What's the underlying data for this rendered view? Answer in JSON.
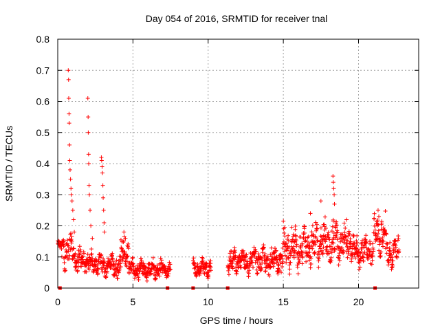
{
  "chart_data": {
    "type": "scatter",
    "title": "Day 054 of 2016, SRMTID for receiver tnal",
    "xlabel": "GPS time / hours",
    "ylabel": "SRMTID / TECUs",
    "xlim": [
      0,
      24
    ],
    "ylim": [
      0,
      0.8
    ],
    "xticks": [
      0,
      5,
      10,
      15,
      20
    ],
    "yticks": [
      0,
      0.1,
      0.2,
      0.3,
      0.4,
      0.5,
      0.6,
      0.7,
      0.8
    ],
    "grid": true,
    "marker": "+",
    "color": "#ff0000",
    "baseline_markers_x": [
      0.15,
      7.3,
      9.0,
      11.3,
      21.1
    ],
    "segments": [
      {
        "x0": 0.0,
        "x1": 0.2,
        "base": 0.14,
        "amp": 0.02
      },
      {
        "x0": 0.2,
        "x1": 1.1,
        "base": 0.12,
        "amp": 0.04
      },
      {
        "x0": 1.1,
        "x1": 2.0,
        "base": 0.09,
        "amp": 0.03
      },
      {
        "x0": 2.0,
        "x1": 2.9,
        "base": 0.08,
        "amp": 0.03
      },
      {
        "x0": 2.9,
        "x1": 4.2,
        "base": 0.07,
        "amp": 0.03
      },
      {
        "x0": 4.2,
        "x1": 4.7,
        "base": 0.12,
        "amp": 0.04
      },
      {
        "x0": 4.7,
        "x1": 7.5,
        "base": 0.06,
        "amp": 0.025
      },
      {
        "x0": 9.0,
        "x1": 10.2,
        "base": 0.065,
        "amp": 0.02
      },
      {
        "x0": 11.3,
        "x1": 13.0,
        "base": 0.085,
        "amp": 0.03
      },
      {
        "x0": 13.0,
        "x1": 15.0,
        "base": 0.09,
        "amp": 0.035
      },
      {
        "x0": 15.0,
        "x1": 17.0,
        "base": 0.13,
        "amp": 0.05
      },
      {
        "x0": 17.0,
        "x1": 19.5,
        "base": 0.15,
        "amp": 0.05
      },
      {
        "x0": 19.5,
        "x1": 21.0,
        "base": 0.12,
        "amp": 0.04
      },
      {
        "x0": 21.0,
        "x1": 21.8,
        "base": 0.17,
        "amp": 0.05
      },
      {
        "x0": 21.8,
        "x1": 22.7,
        "base": 0.12,
        "amp": 0.04
      }
    ],
    "peaks": [
      {
        "x": 0.4,
        "y": 0.15
      },
      {
        "x": 0.7,
        "y": 0.7
      },
      {
        "x": 0.72,
        "y": 0.67
      },
      {
        "x": 0.73,
        "y": 0.61
      },
      {
        "x": 0.75,
        "y": 0.56
      },
      {
        "x": 0.76,
        "y": 0.53
      },
      {
        "x": 0.78,
        "y": 0.46
      },
      {
        "x": 0.8,
        "y": 0.41
      },
      {
        "x": 0.82,
        "y": 0.38
      },
      {
        "x": 0.85,
        "y": 0.35
      },
      {
        "x": 0.88,
        "y": 0.32
      },
      {
        "x": 0.9,
        "y": 0.3
      },
      {
        "x": 0.95,
        "y": 0.28
      },
      {
        "x": 1.0,
        "y": 0.25
      },
      {
        "x": 1.05,
        "y": 0.22
      },
      {
        "x": 1.1,
        "y": 0.18
      },
      {
        "x": 2.0,
        "y": 0.61
      },
      {
        "x": 2.02,
        "y": 0.55
      },
      {
        "x": 2.03,
        "y": 0.5
      },
      {
        "x": 2.05,
        "y": 0.43
      },
      {
        "x": 2.06,
        "y": 0.4
      },
      {
        "x": 2.08,
        "y": 0.33
      },
      {
        "x": 2.1,
        "y": 0.3
      },
      {
        "x": 2.15,
        "y": 0.25
      },
      {
        "x": 2.2,
        "y": 0.2
      },
      {
        "x": 2.3,
        "y": 0.16
      },
      {
        "x": 2.9,
        "y": 0.42
      },
      {
        "x": 2.92,
        "y": 0.41
      },
      {
        "x": 2.95,
        "y": 0.39
      },
      {
        "x": 2.97,
        "y": 0.37
      },
      {
        "x": 3.0,
        "y": 0.33
      },
      {
        "x": 3.02,
        "y": 0.29
      },
      {
        "x": 3.05,
        "y": 0.25
      },
      {
        "x": 3.08,
        "y": 0.21
      },
      {
        "x": 3.1,
        "y": 0.18
      },
      {
        "x": 4.4,
        "y": 0.18
      },
      {
        "x": 4.5,
        "y": 0.16
      },
      {
        "x": 17.5,
        "y": 0.28
      },
      {
        "x": 18.3,
        "y": 0.36
      },
      {
        "x": 18.32,
        "y": 0.34
      },
      {
        "x": 18.35,
        "y": 0.32
      },
      {
        "x": 18.38,
        "y": 0.3
      },
      {
        "x": 18.4,
        "y": 0.27
      },
      {
        "x": 21.3,
        "y": 0.25
      },
      {
        "x": 21.35,
        "y": 0.23
      },
      {
        "x": 16.8,
        "y": 0.24
      },
      {
        "x": 19.2,
        "y": 0.22
      }
    ]
  }
}
